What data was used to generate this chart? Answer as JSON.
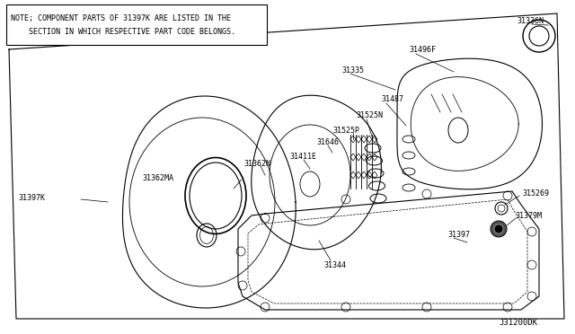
{
  "bg_color": "#ffffff",
  "line_color": "#000000",
  "text_color": "#000000",
  "note_text_line1": "NOTE; COMPONENT PARTS OF 31397K ARE LISTED IN THE",
  "note_text_line2": "    SECTION IN WHICH RESPECTIVE PART CODE BELONGS.",
  "diagram_code": "J31200DK",
  "fig_width": 6.4,
  "fig_height": 3.72,
  "dpi": 100
}
